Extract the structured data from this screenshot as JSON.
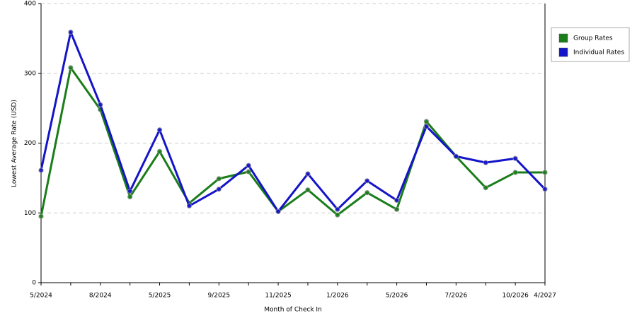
{
  "chart_data": {
    "type": "line",
    "x_label": "Month of Check In",
    "y_label": "Lowest Average Rate (USD)",
    "categories": [
      "5/2024",
      null,
      "8/2024",
      null,
      "5/2025",
      null,
      "9/2025",
      null,
      "11/2025",
      null,
      "1/2026",
      null,
      "5/2026",
      null,
      "7/2026",
      null,
      "10/2026",
      "4/2027"
    ],
    "series": [
      {
        "name": "Group Rates",
        "color": "#1a7d1a",
        "values": [
          95,
          308,
          248,
          123,
          188,
          114,
          149,
          159,
          102,
          133,
          97,
          129,
          105,
          231,
          181,
          136,
          158,
          158
        ]
      },
      {
        "name": "Individual Rates",
        "color": "#1414c8",
        "values": [
          161,
          359,
          255,
          131,
          219,
          110,
          134,
          168,
          102,
          156,
          105,
          146,
          118,
          224,
          181,
          172,
          178,
          134
        ]
      }
    ],
    "ylim": [
      0,
      400
    ],
    "yticks": [
      0,
      100,
      200,
      300,
      400
    ],
    "grid": true,
    "legend": "right"
  }
}
